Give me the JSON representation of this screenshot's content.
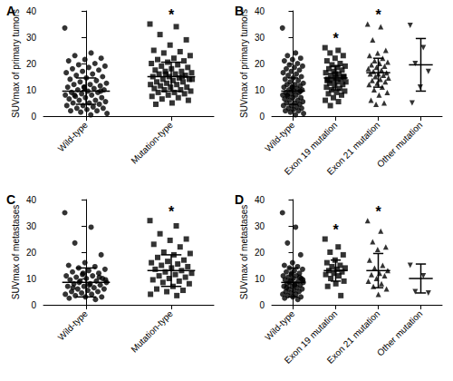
{
  "chart_data": [
    {
      "type": "scatter",
      "title": "A",
      "ylabel": "SUVmax of primary tumors",
      "color": "#000000",
      "grid": false,
      "ylim": [
        0,
        40
      ],
      "yticks": [
        0,
        10,
        20,
        30,
        40
      ],
      "categories": [
        "Wild-type",
        "Mutation-type"
      ],
      "groups": [
        {
          "marker": "circle",
          "mean": 9.5,
          "sd": 5,
          "values": [
            33.5,
            24,
            23,
            22,
            21.5,
            21,
            20,
            19.5,
            19,
            18.5,
            18,
            17.5,
            17,
            16.5,
            16,
            15.5,
            15,
            14.5,
            14,
            13.5,
            13,
            12.5,
            12,
            12,
            11.5,
            11,
            11,
            10.5,
            10,
            10,
            9.5,
            9,
            9,
            8.5,
            8,
            8,
            7.5,
            7,
            7,
            6.5,
            6,
            6,
            5.5,
            5,
            5,
            4.5,
            4,
            4,
            3.5,
            3,
            3,
            2.5,
            2,
            2,
            1.5,
            1,
            0.5,
            8,
            9.5,
            11
          ]
        },
        {
          "marker": "square",
          "mean": 15,
          "sd": 5.5,
          "values": [
            35,
            34,
            31,
            29,
            27,
            25,
            24.5,
            24,
            23,
            22,
            21.5,
            21,
            20.5,
            20,
            19.5,
            19,
            18.5,
            18,
            17.5,
            17,
            17,
            16.5,
            16,
            16,
            15.5,
            15,
            15,
            14.5,
            14,
            14,
            13.5,
            13,
            13,
            12.5,
            12,
            12,
            11.5,
            11,
            11,
            10.5,
            10,
            10,
            9.5,
            9,
            9,
            8.5,
            8,
            7.5,
            7,
            6.5,
            6,
            5,
            4.5,
            15,
            16,
            14
          ]
        }
      ],
      "annotations": [
        {
          "category": "Mutation-type",
          "text": "*"
        }
      ]
    },
    {
      "type": "scatter",
      "title": "B",
      "ylabel": "SUVmax of primary tumors",
      "color": "#000000",
      "grid": false,
      "ylim": [
        0,
        40
      ],
      "yticks": [
        0,
        10,
        20,
        30,
        40
      ],
      "categories": [
        "Wild-type",
        "Exon 19 mutation",
        "Exon 21 mutation",
        "Other mutation"
      ],
      "groups": [
        {
          "marker": "circle",
          "mean": 9.5,
          "sd": 5,
          "values": [
            33.5,
            24,
            23,
            22,
            21.5,
            21,
            20,
            19.5,
            19,
            18.5,
            18,
            17.5,
            17,
            16.5,
            16,
            15.5,
            15,
            14.5,
            14,
            13.5,
            13,
            12.5,
            12,
            12,
            11.5,
            11,
            11,
            10.5,
            10,
            10,
            9.5,
            9,
            9,
            8.5,
            8,
            8,
            7.5,
            7,
            7,
            6.5,
            6,
            6,
            5.5,
            5,
            5,
            4.5,
            4,
            4,
            3.5,
            3,
            3,
            2.5,
            2,
            2,
            1.5,
            1,
            0.5,
            8,
            9.5,
            11
          ]
        },
        {
          "marker": "square",
          "mean": 14.5,
          "sd": 4.5,
          "values": [
            26,
            25,
            24,
            23,
            22,
            21,
            20,
            19.5,
            19,
            18.5,
            18,
            17.5,
            17,
            16.5,
            16,
            15.5,
            15,
            14.5,
            14,
            14,
            13.5,
            13,
            13,
            12.5,
            12,
            11.5,
            11,
            10.5,
            10,
            9.5,
            9,
            8.5,
            8,
            7,
            6,
            5.5,
            4,
            15,
            16,
            13.5
          ]
        },
        {
          "marker": "triangle",
          "mean": 16.5,
          "sd": 5.5,
          "values": [
            35,
            34,
            29,
            25,
            24,
            23,
            22,
            21,
            20.5,
            20,
            19.5,
            19,
            18.5,
            18,
            17.5,
            17,
            16.5,
            16,
            16,
            15.5,
            15,
            14.5,
            14,
            13.5,
            13,
            12.5,
            12,
            11,
            10,
            9,
            8,
            6,
            5,
            4.5
          ]
        },
        {
          "marker": "triangle-down",
          "mean": 19.5,
          "sd": 10,
          "values": [
            34.5,
            26,
            20,
            17,
            11,
            5
          ]
        }
      ],
      "annotations": [
        {
          "category": "Exon 19 mutation",
          "text": "*"
        },
        {
          "category": "Exon 21 mutation",
          "text": "*"
        }
      ]
    },
    {
      "type": "scatter",
      "title": "C",
      "ylabel": "SUVmax of metastases",
      "color": "#000000",
      "grid": false,
      "ylim": [
        0,
        40
      ],
      "yticks": [
        0,
        10,
        20,
        30,
        40
      ],
      "categories": [
        "Wild-type",
        "Mutation-type"
      ],
      "groups": [
        {
          "marker": "circle",
          "mean": 8.5,
          "sd": 5.5,
          "values": [
            35,
            29.5,
            23.5,
            19,
            16,
            15,
            14.5,
            14,
            13.5,
            13,
            12.5,
            12,
            11.5,
            11,
            11,
            10.5,
            10,
            10,
            9.5,
            9,
            9,
            8.5,
            8,
            8,
            7.5,
            7,
            7,
            6.5,
            6,
            6,
            5.5,
            5,
            5,
            4.5,
            4,
            4,
            3.5,
            3,
            3,
            2.5,
            2,
            8.5,
            9.5,
            7.5,
            6.5,
            10.5,
            12
          ]
        },
        {
          "marker": "square",
          "mean": 13,
          "sd": 6,
          "values": [
            32,
            30,
            27,
            25,
            24.5,
            23,
            22,
            20,
            19.5,
            19,
            18,
            17,
            16.5,
            16,
            15.5,
            15,
            14.5,
            14,
            13.5,
            13,
            12.5,
            12,
            11.5,
            11,
            10.5,
            10,
            9.5,
            9,
            8.5,
            8,
            7,
            6,
            5.5,
            5,
            4,
            3.5
          ]
        }
      ],
      "annotations": [
        {
          "category": "Mutation-type",
          "text": "*"
        }
      ]
    },
    {
      "type": "scatter",
      "title": "D",
      "ylabel": "SUVmax of metastases",
      "color": "#000000",
      "grid": false,
      "ylim": [
        0,
        40
      ],
      "yticks": [
        0,
        10,
        20,
        30,
        40
      ],
      "categories": [
        "Wild-type",
        "Exon 19 mutation",
        "Exon 21 mutation",
        "Other mutation"
      ],
      "groups": [
        {
          "marker": "circle",
          "mean": 8.5,
          "sd": 5.5,
          "values": [
            35,
            29.5,
            23.5,
            19,
            16,
            15,
            14.5,
            14,
            13.5,
            13,
            12.5,
            12,
            11.5,
            11,
            11,
            10.5,
            10,
            10,
            9.5,
            9,
            9,
            8.5,
            8,
            8,
            7.5,
            7,
            7,
            6.5,
            6,
            6,
            5.5,
            5,
            5,
            4.5,
            4,
            4,
            3.5,
            3,
            3,
            2.5,
            2,
            8.5,
            9.5,
            7.5,
            6.5,
            10.5,
            12
          ]
        },
        {
          "marker": "square",
          "mean": 13,
          "sd": 4,
          "values": [
            25,
            22,
            20,
            19,
            17,
            16,
            15,
            14.5,
            14,
            13.5,
            13,
            12.5,
            12,
            11.5,
            11,
            10,
            9,
            8,
            7,
            3.5
          ]
        },
        {
          "marker": "triangle",
          "mean": 13,
          "sd": 6.5,
          "values": [
            32,
            28,
            24,
            22,
            21,
            17,
            15,
            14,
            13,
            12,
            11.5,
            11,
            10,
            9,
            8,
            7,
            6,
            4
          ]
        },
        {
          "marker": "triangle-down",
          "mean": 10,
          "sd": 5.5,
          "values": [
            15,
            11,
            5,
            4.5
          ]
        }
      ],
      "annotations": [
        {
          "category": "Exon 19 mutation",
          "text": "*"
        },
        {
          "category": "Exon 21 mutation",
          "text": "*"
        }
      ]
    }
  ]
}
